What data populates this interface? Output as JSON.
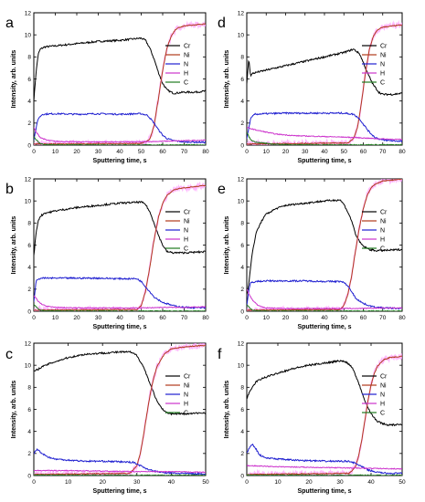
{
  "colors": {
    "Cr": "#000000",
    "Ni": "#b03a1a",
    "N": "#1f1fd0",
    "H": "#cc33cc",
    "C": "#1f7a1f",
    "noise": "#ff9aff"
  },
  "chart_data": [
    {
      "panel": "a",
      "type": "line",
      "xlabel": "Sputtering time, s",
      "ylabel": "Intensity, arb. units",
      "xlim": [
        0,
        80
      ],
      "ylim": [
        0,
        12
      ],
      "xticks": [
        0,
        10,
        20,
        30,
        40,
        50,
        60,
        70,
        80
      ],
      "yticks": [
        0,
        2,
        4,
        6,
        8,
        10,
        12
      ],
      "legend": "top-right",
      "series": [
        {
          "name": "Cr",
          "x": [
            0,
            1,
            2,
            3,
            5,
            10,
            20,
            30,
            40,
            50,
            52,
            54,
            56,
            58,
            60,
            62,
            65,
            70,
            75,
            80
          ],
          "y": [
            4.0,
            6.5,
            8.2,
            8.7,
            8.9,
            9.0,
            9.2,
            9.4,
            9.5,
            9.7,
            9.5,
            8.8,
            7.8,
            6.6,
            5.6,
            5.0,
            4.7,
            4.8,
            4.8,
            4.9
          ]
        },
        {
          "name": "Ni",
          "x": [
            0,
            50,
            54,
            56,
            58,
            60,
            62,
            64,
            66,
            68,
            70,
            75,
            80
          ],
          "y": [
            0.1,
            0.15,
            0.5,
            1.8,
            4.2,
            6.8,
            8.8,
            9.9,
            10.5,
            10.7,
            10.8,
            10.9,
            11.0
          ]
        },
        {
          "name": "N",
          "x": [
            0,
            2,
            4,
            10,
            20,
            30,
            40,
            50,
            53,
            56,
            58,
            60,
            62,
            65,
            70,
            80
          ],
          "y": [
            0.5,
            2.4,
            2.8,
            2.85,
            2.8,
            2.85,
            2.8,
            2.85,
            2.7,
            2.0,
            1.4,
            0.9,
            0.6,
            0.4,
            0.3,
            0.25
          ]
        },
        {
          "name": "H",
          "x": [
            0,
            1,
            3,
            6,
            10,
            20,
            30,
            40,
            50,
            60,
            70,
            80
          ],
          "y": [
            1.6,
            1.2,
            0.7,
            0.45,
            0.35,
            0.3,
            0.3,
            0.3,
            0.3,
            0.35,
            0.4,
            0.45
          ]
        },
        {
          "name": "C",
          "x": [
            0,
            1,
            2,
            3,
            5,
            10,
            20,
            40,
            60,
            80
          ],
          "y": [
            0.8,
            0.5,
            0.3,
            0.15,
            0.05,
            0.03,
            0.02,
            0.02,
            0.02,
            0.02
          ]
        }
      ]
    },
    {
      "panel": "d",
      "type": "line",
      "xlabel": "Sputtering time, s",
      "ylabel": "Intensity, arb. units",
      "xlim": [
        0,
        80
      ],
      "ylim": [
        0,
        12
      ],
      "xticks": [
        0,
        10,
        20,
        30,
        40,
        50,
        60,
        70,
        80
      ],
      "yticks": [
        0,
        2,
        4,
        6,
        8,
        10,
        12
      ],
      "legend": "top-right",
      "series": [
        {
          "name": "Cr",
          "x": [
            0,
            1,
            2,
            3,
            5,
            10,
            20,
            30,
            40,
            50,
            55,
            58,
            60,
            62,
            65,
            68,
            70,
            75,
            80
          ],
          "y": [
            5.5,
            7.8,
            6.3,
            6.5,
            6.6,
            6.8,
            7.2,
            7.6,
            8.0,
            8.4,
            8.7,
            8.3,
            7.5,
            6.6,
            5.5,
            4.8,
            4.6,
            4.6,
            4.7
          ]
        },
        {
          "name": "Ni",
          "x": [
            0,
            52,
            55,
            57,
            59,
            61,
            63,
            65,
            67,
            70,
            75,
            80
          ],
          "y": [
            0.1,
            0.2,
            0.6,
            1.6,
            3.8,
            6.4,
            8.6,
            9.8,
            10.4,
            10.7,
            10.8,
            10.9
          ]
        },
        {
          "name": "N",
          "x": [
            0,
            2,
            4,
            10,
            20,
            30,
            40,
            50,
            55,
            58,
            60,
            63,
            66,
            70,
            80
          ],
          "y": [
            0.6,
            2.4,
            2.8,
            2.85,
            2.9,
            2.9,
            2.9,
            2.9,
            2.8,
            2.4,
            1.9,
            1.2,
            0.7,
            0.45,
            0.35
          ]
        },
        {
          "name": "H",
          "x": [
            0,
            2,
            4,
            8,
            15,
            25,
            35,
            45,
            55,
            65,
            80
          ],
          "y": [
            1.6,
            1.5,
            1.4,
            1.25,
            1.0,
            0.85,
            0.8,
            0.75,
            0.7,
            0.6,
            0.5
          ]
        },
        {
          "name": "C",
          "x": [
            0,
            1,
            2,
            4,
            8,
            12,
            20,
            40,
            60,
            80
          ],
          "y": [
            1.2,
            0.8,
            0.5,
            0.3,
            0.2,
            0.1,
            0.05,
            0.03,
            0.03,
            0.03
          ]
        }
      ]
    },
    {
      "panel": "b",
      "type": "line",
      "xlabel": "Sputtering time, s",
      "ylabel": "Intensity, arb. units",
      "xlim": [
        0,
        80
      ],
      "ylim": [
        0,
        12
      ],
      "xticks": [
        0,
        10,
        20,
        30,
        40,
        50,
        60,
        70,
        80
      ],
      "yticks": [
        0,
        2,
        4,
        6,
        8,
        10,
        12
      ],
      "legend": "top-right",
      "series": [
        {
          "name": "Cr",
          "x": [
            0,
            1,
            2,
            3,
            5,
            8,
            10,
            20,
            30,
            40,
            50,
            52,
            54,
            56,
            58,
            60,
            62,
            65,
            70,
            80
          ],
          "y": [
            5.0,
            7.0,
            8.2,
            8.6,
            8.9,
            9.0,
            9.1,
            9.4,
            9.6,
            9.8,
            9.9,
            9.7,
            9.0,
            8.0,
            6.9,
            6.0,
            5.4,
            5.3,
            5.3,
            5.4
          ]
        },
        {
          "name": "Ni",
          "x": [
            0,
            48,
            50,
            52,
            54,
            56,
            58,
            60,
            62,
            65,
            70,
            75,
            80
          ],
          "y": [
            0.1,
            0.15,
            0.5,
            1.8,
            4.0,
            6.5,
            8.5,
            9.8,
            10.5,
            11.0,
            11.2,
            11.3,
            11.4
          ]
        },
        {
          "name": "N",
          "x": [
            0,
            1,
            3,
            10,
            20,
            30,
            40,
            48,
            50,
            53,
            56,
            60,
            65,
            70,
            80
          ],
          "y": [
            0.8,
            2.7,
            3.0,
            3.0,
            3.0,
            3.0,
            2.95,
            2.95,
            2.7,
            2.0,
            1.3,
            0.8,
            0.5,
            0.35,
            0.3
          ]
        },
        {
          "name": "H",
          "x": [
            0,
            1,
            2,
            4,
            6,
            10,
            20,
            30,
            40,
            50,
            60,
            70,
            80
          ],
          "y": [
            1.4,
            1.2,
            0.9,
            0.6,
            0.45,
            0.35,
            0.3,
            0.3,
            0.3,
            0.3,
            0.35,
            0.35,
            0.4
          ]
        },
        {
          "name": "C",
          "x": [
            0,
            1,
            2,
            3,
            5,
            10,
            20,
            40,
            60,
            80
          ],
          "y": [
            0.6,
            0.4,
            0.2,
            0.1,
            0.05,
            0.03,
            0.02,
            0.02,
            0.02,
            0.02
          ]
        }
      ]
    },
    {
      "panel": "e",
      "type": "line",
      "xlabel": "Sputtering time, s",
      "ylabel": "Intensity, arb. units",
      "xlim": [
        0,
        80
      ],
      "ylim": [
        0,
        12
      ],
      "xticks": [
        0,
        10,
        20,
        30,
        40,
        50,
        60,
        70,
        80
      ],
      "yticks": [
        0,
        2,
        4,
        6,
        8,
        10,
        12
      ],
      "legend": "top-right",
      "series": [
        {
          "name": "Cr",
          "x": [
            0,
            1,
            2,
            3,
            5,
            8,
            10,
            15,
            20,
            30,
            40,
            48,
            50,
            52,
            54,
            56,
            58,
            60,
            63,
            66,
            70,
            80
          ],
          "y": [
            1.5,
            2.5,
            4.0,
            5.5,
            7.2,
            8.3,
            8.8,
            9.3,
            9.6,
            9.8,
            10.0,
            10.1,
            9.7,
            9.0,
            8.2,
            7.0,
            6.3,
            5.9,
            5.6,
            5.5,
            5.5,
            5.6
          ]
        },
        {
          "name": "Ni",
          "x": [
            0,
            48,
            50,
            52,
            54,
            56,
            58,
            60,
            62,
            64,
            66,
            70,
            75,
            80
          ],
          "y": [
            0.1,
            0.15,
            0.5,
            1.5,
            3.2,
            5.5,
            7.6,
            9.3,
            10.5,
            11.2,
            11.5,
            11.8,
            11.9,
            12.0
          ]
        },
        {
          "name": "N",
          "x": [
            0,
            1,
            2,
            5,
            10,
            20,
            30,
            40,
            48,
            50,
            52,
            54,
            56,
            60,
            65,
            70,
            80
          ],
          "y": [
            0.5,
            1.8,
            2.6,
            2.7,
            2.75,
            2.75,
            2.75,
            2.7,
            2.7,
            2.6,
            2.3,
            1.8,
            1.2,
            0.7,
            0.4,
            0.3,
            0.25
          ]
        },
        {
          "name": "H",
          "x": [
            0,
            1,
            3,
            6,
            10,
            20,
            30,
            40,
            50,
            60,
            70,
            80
          ],
          "y": [
            2.0,
            1.6,
            1.0,
            0.5,
            0.3,
            0.25,
            0.25,
            0.25,
            0.25,
            0.25,
            0.3,
            0.3
          ]
        },
        {
          "name": "C",
          "x": [
            0,
            1,
            2,
            3,
            5,
            10,
            20,
            40,
            60,
            80
          ],
          "y": [
            0.6,
            0.4,
            0.2,
            0.1,
            0.05,
            0.02,
            0.02,
            0.02,
            0.02,
            0.02
          ]
        }
      ]
    },
    {
      "panel": "c",
      "type": "line",
      "xlabel": "Sputtering time, s",
      "ylabel": "Intensity, arb. units",
      "xlim": [
        0,
        50
      ],
      "ylim": [
        0,
        12
      ],
      "xticks": [
        0,
        10,
        20,
        30,
        40,
        50
      ],
      "yticks": [
        0,
        2,
        4,
        6,
        8,
        10,
        12
      ],
      "legend": "top-right",
      "series": [
        {
          "name": "Cr",
          "x": [
            0,
            2,
            5,
            10,
            15,
            20,
            25,
            28,
            30,
            32,
            34,
            36,
            38,
            40,
            45,
            50
          ],
          "y": [
            9.4,
            9.8,
            10.2,
            10.7,
            11.0,
            11.1,
            11.2,
            11.2,
            10.9,
            9.8,
            8.2,
            6.6,
            5.8,
            5.6,
            5.6,
            5.7
          ]
        },
        {
          "name": "Ni",
          "x": [
            0,
            28,
            30,
            31,
            32,
            33,
            34,
            35,
            36,
            38,
            40,
            45,
            50
          ],
          "y": [
            0.1,
            0.2,
            0.9,
            2.0,
            3.8,
            5.8,
            7.6,
            9.0,
            10.0,
            11.0,
            11.5,
            11.7,
            11.8
          ]
        },
        {
          "name": "N",
          "x": [
            0,
            1,
            2,
            4,
            6,
            10,
            15,
            20,
            25,
            29,
            31,
            33,
            35,
            38,
            42,
            50
          ],
          "y": [
            2.0,
            2.4,
            2.1,
            1.7,
            1.5,
            1.4,
            1.3,
            1.3,
            1.25,
            1.2,
            0.9,
            0.6,
            0.4,
            0.25,
            0.2,
            0.15
          ]
        },
        {
          "name": "H",
          "x": [
            0,
            5,
            10,
            20,
            30,
            40,
            50
          ],
          "y": [
            0.45,
            0.45,
            0.45,
            0.4,
            0.35,
            0.35,
            0.3
          ]
        },
        {
          "name": "C",
          "x": [
            0,
            5,
            10,
            20,
            30,
            40,
            50
          ],
          "y": [
            0.05,
            0.03,
            0.03,
            0.03,
            0.03,
            0.03,
            0.03
          ]
        }
      ]
    },
    {
      "panel": "f",
      "type": "line",
      "xlabel": "Sputtering time, s",
      "ylabel": "Intensity, arb. units",
      "xlim": [
        0,
        50
      ],
      "ylim": [
        0,
        12
      ],
      "xticks": [
        0,
        10,
        20,
        30,
        40,
        50
      ],
      "yticks": [
        0,
        2,
        4,
        6,
        8,
        10,
        12
      ],
      "legend": "top-right",
      "series": [
        {
          "name": "Cr",
          "x": [
            0,
            1,
            2,
            3,
            5,
            8,
            10,
            15,
            20,
            25,
            30,
            32,
            34,
            36,
            38,
            40,
            42,
            45,
            50
          ],
          "y": [
            7.0,
            7.6,
            8.1,
            8.5,
            8.8,
            9.1,
            9.3,
            9.7,
            10.0,
            10.2,
            10.4,
            10.3,
            9.8,
            8.4,
            6.8,
            5.6,
            4.9,
            4.6,
            4.6
          ]
        },
        {
          "name": "Ni",
          "x": [
            0,
            33,
            35,
            36,
            37,
            38,
            39,
            40,
            41,
            42,
            44,
            46,
            50
          ],
          "y": [
            0.1,
            0.2,
            0.8,
            1.8,
            3.2,
            5.0,
            6.8,
            8.2,
            9.2,
            9.9,
            10.5,
            10.7,
            10.8
          ]
        },
        {
          "name": "N",
          "x": [
            0,
            1,
            2,
            3,
            4,
            6,
            10,
            15,
            20,
            25,
            30,
            33,
            35,
            37,
            39,
            42,
            45,
            50
          ],
          "y": [
            2.0,
            2.6,
            2.8,
            2.4,
            1.9,
            1.6,
            1.5,
            1.4,
            1.35,
            1.3,
            1.3,
            1.3,
            1.1,
            0.8,
            0.5,
            0.3,
            0.2,
            0.2
          ]
        },
        {
          "name": "H",
          "x": [
            0,
            5,
            10,
            20,
            30,
            40,
            50
          ],
          "y": [
            0.9,
            0.85,
            0.8,
            0.75,
            0.7,
            0.65,
            0.6
          ]
        },
        {
          "name": "C",
          "x": [
            0,
            5,
            10,
            20,
            30,
            40,
            50
          ],
          "y": [
            0.05,
            0.03,
            0.03,
            0.03,
            0.03,
            0.03,
            0.03
          ]
        }
      ]
    }
  ]
}
